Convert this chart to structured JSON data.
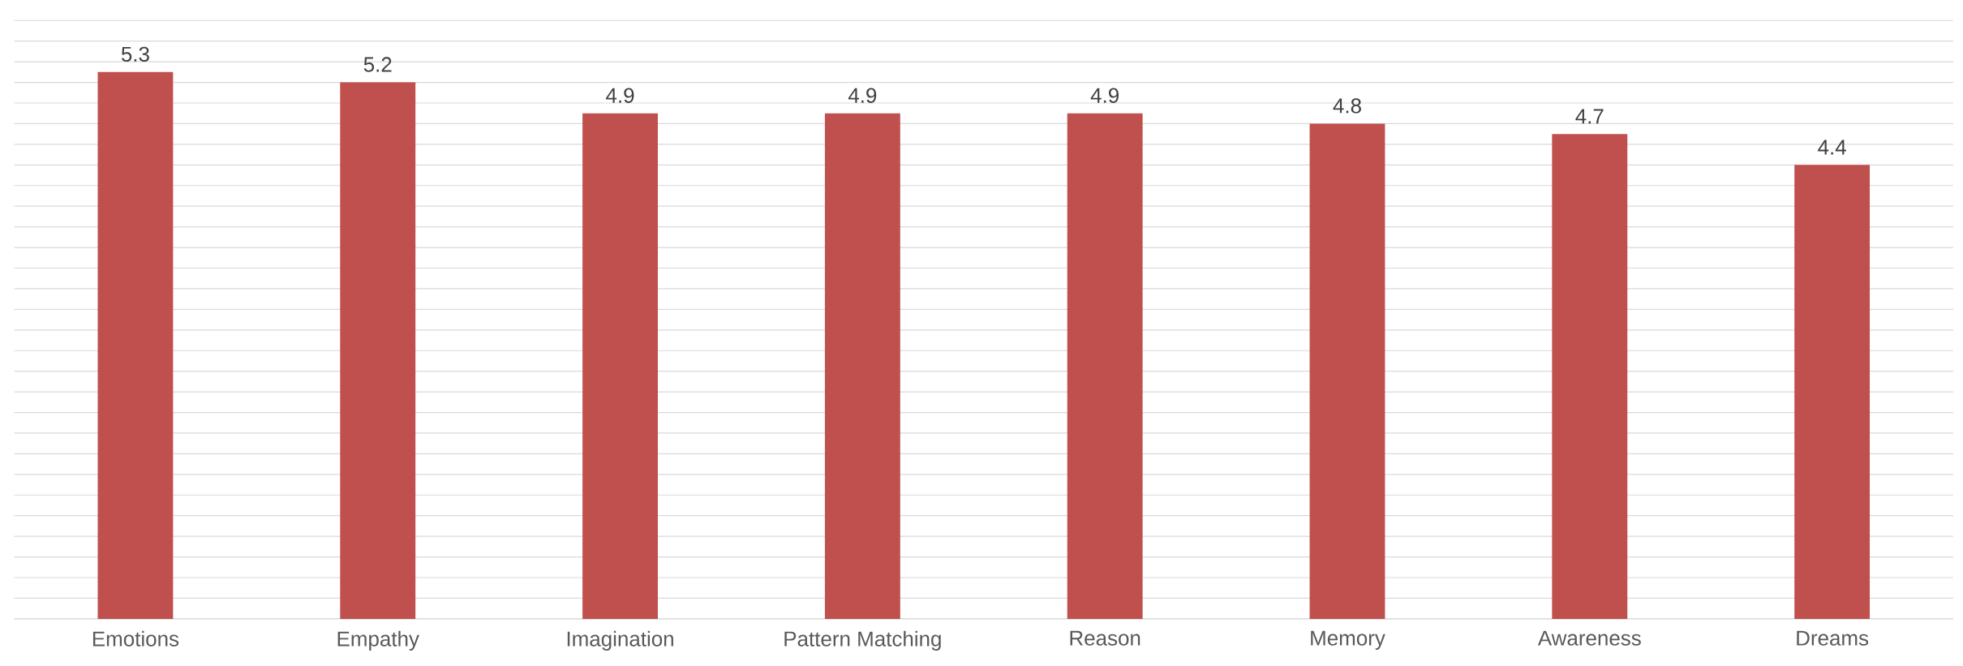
{
  "chart_data": {
    "type": "bar",
    "categories": [
      "Emotions",
      "Empathy",
      "Imagination",
      "Pattern Matching",
      "Reason",
      "Memory",
      "Awareness",
      "Dreams"
    ],
    "values": [
      5.3,
      5.2,
      4.9,
      4.9,
      4.9,
      4.8,
      4.7,
      4.4
    ],
    "color": "#c0504d",
    "grid": "y",
    "tick_labels": "x",
    "data_labels": true
  }
}
